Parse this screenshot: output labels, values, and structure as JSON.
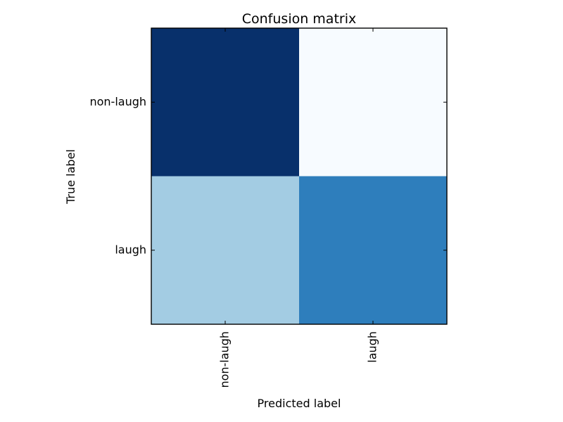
{
  "chart_data": {
    "type": "heatmap",
    "title": "Confusion matrix",
    "xlabel": "Predicted label",
    "ylabel": "True label",
    "x_categories": [
      "non-laugh",
      "laugh"
    ],
    "y_categories": [
      "non-laugh",
      "laugh"
    ],
    "matrix": [
      [
        1.0,
        0.0
      ],
      [
        0.36,
        0.7
      ]
    ],
    "colormap": "Blues",
    "color_low": "#f7fbff",
    "color_high": "#08306b",
    "grid": false,
    "legend": "none"
  }
}
